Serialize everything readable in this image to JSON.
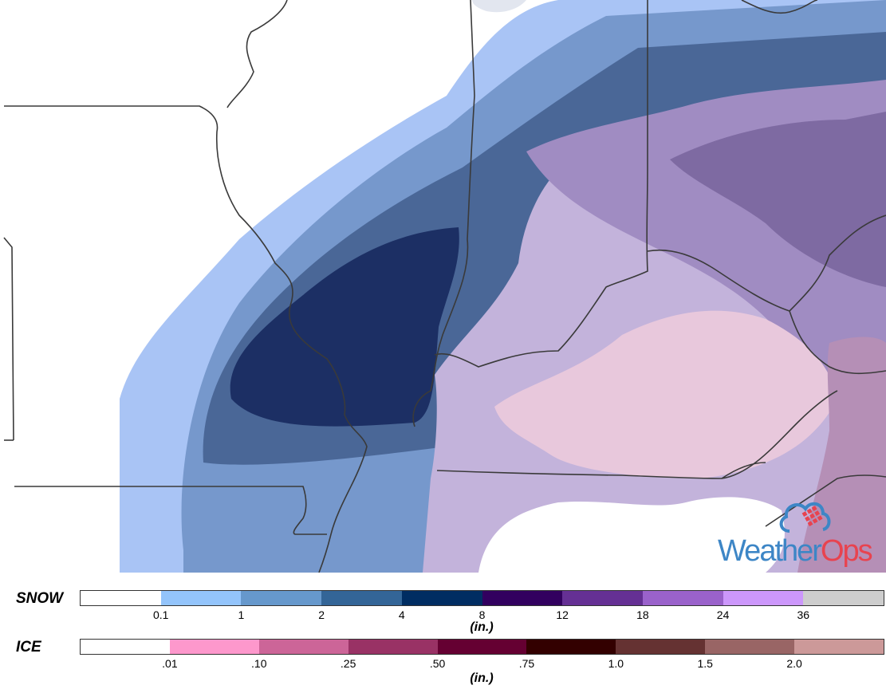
{
  "map": {
    "colors": {
      "snow_trace": "#a9c4f5",
      "snow_1": "#7698cc",
      "snow_2": "#4a6797",
      "snow_4": "#1c2f64",
      "mix_light": "#c3b3db",
      "mix_mid": "#a08cc2",
      "mix_dark": "#7e6aa2",
      "ice_light": "#e8c8dc",
      "ice_mid": "#b58fb6",
      "border": "#3a3a3a"
    }
  },
  "logo": {
    "text_part1": "Weather",
    "text_part2": "Ops",
    "icon": "cloud-grid-icon"
  },
  "snow_legend": {
    "label": "SNOW",
    "colors": [
      "#ffffff",
      "#93c4fb",
      "#6698cc",
      "#336597",
      "#002d62",
      "#32005f",
      "#653094",
      "#9a62cb",
      "#cc97fb",
      "#cdcdcd"
    ],
    "ticks": [
      "0.1",
      "1",
      "2",
      "4",
      "8",
      "12",
      "18",
      "24",
      "36"
    ],
    "unit": "(in.)"
  },
  "ice_legend": {
    "label": "ICE",
    "colors": [
      "#ffffff",
      "#fd98cc",
      "#cc6598",
      "#993265",
      "#650032",
      "#330000",
      "#653232",
      "#996565",
      "#cc9999"
    ],
    "ticks": [
      ".01",
      ".10",
      ".25",
      ".50",
      ".75",
      "1.0",
      "1.5",
      "2.0"
    ],
    "unit": "(in.)"
  }
}
